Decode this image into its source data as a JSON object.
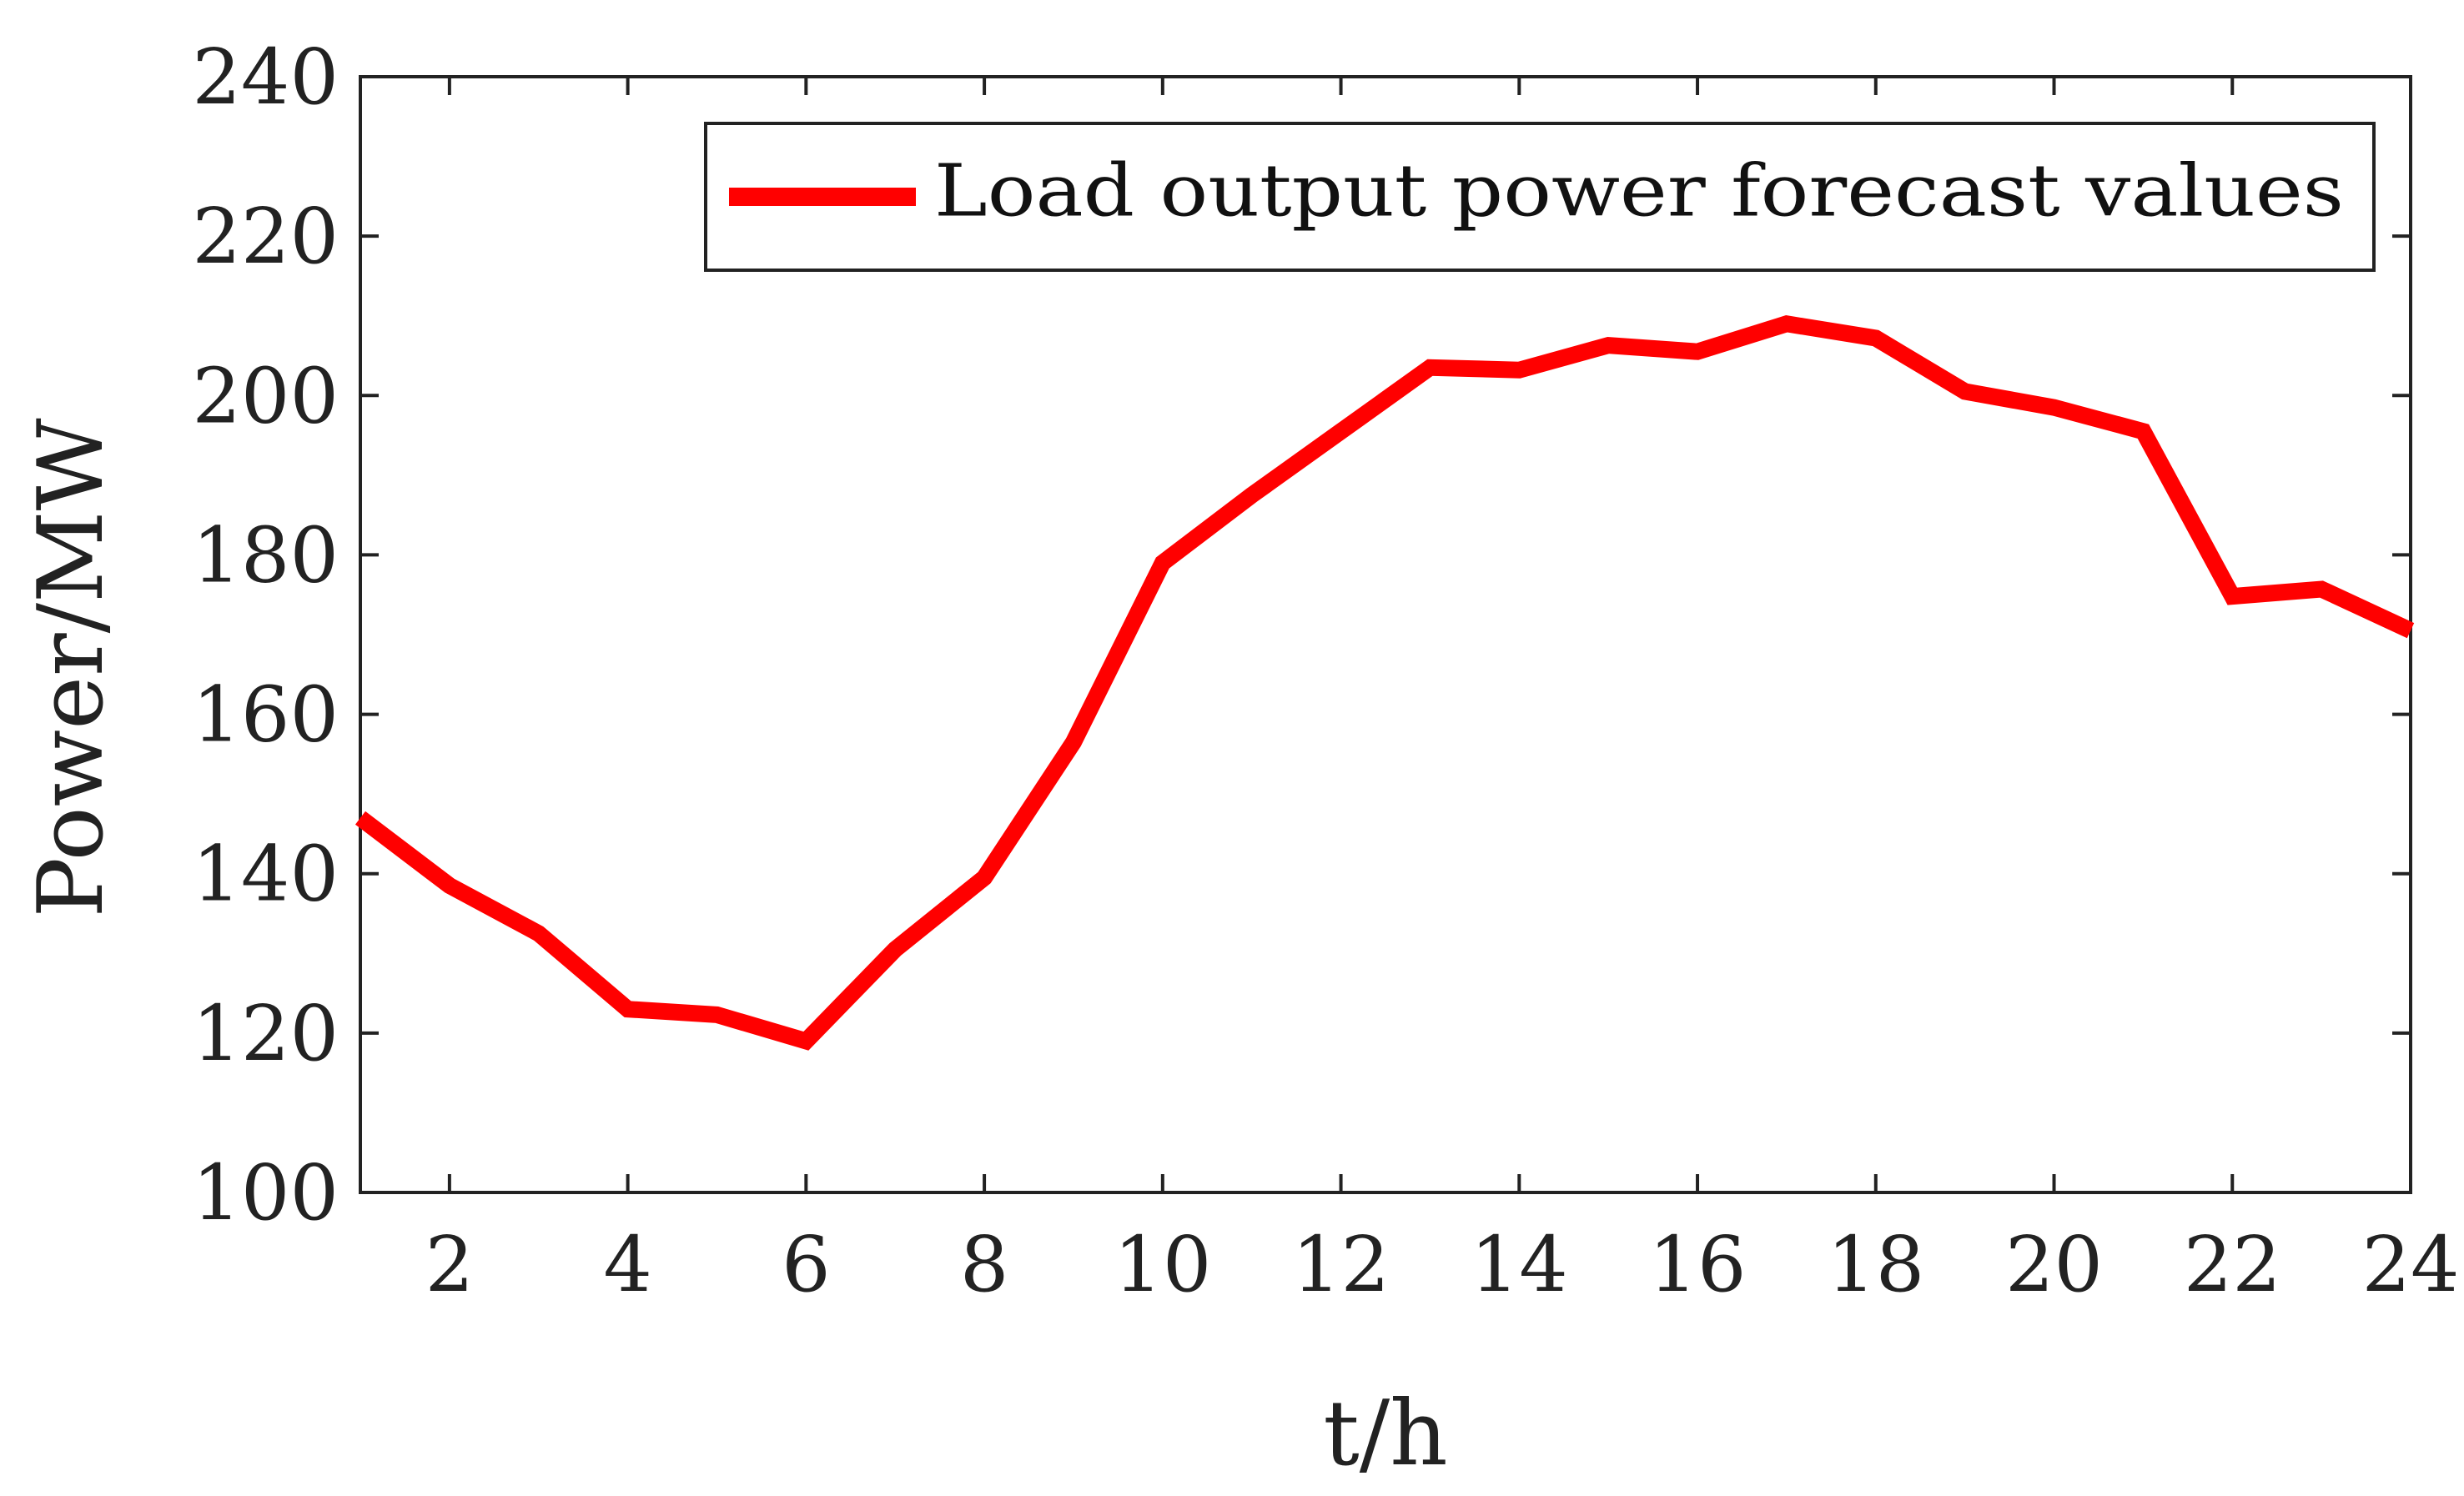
{
  "chart_data": {
    "type": "line",
    "title": "",
    "xlabel": "t/h",
    "ylabel": "Power/MW",
    "xlim": [
      1,
      24
    ],
    "ylim": [
      100,
      240
    ],
    "xticks": [
      2,
      4,
      6,
      8,
      10,
      12,
      14,
      16,
      18,
      20,
      22,
      24
    ],
    "yticks": [
      100,
      120,
      140,
      160,
      180,
      200,
      220,
      240
    ],
    "grid": false,
    "legend_position": "top-right",
    "series": [
      {
        "name": "Load output power forecast values",
        "color": "#ff0000",
        "x": [
          1,
          2,
          3,
          4,
          5,
          6,
          7,
          8,
          9,
          10,
          11,
          12,
          13,
          14,
          15,
          16,
          17,
          18,
          19,
          20,
          21,
          22,
          23,
          24
        ],
        "values": [
          147.0,
          138.5,
          132.5,
          123.0,
          122.3,
          119.0,
          130.5,
          139.5,
          156.5,
          179.0,
          187.5,
          195.5,
          203.5,
          203.2,
          206.3,
          205.5,
          209.0,
          207.2,
          200.5,
          198.5,
          195.5,
          174.8,
          175.7,
          170.5
        ]
      }
    ]
  }
}
